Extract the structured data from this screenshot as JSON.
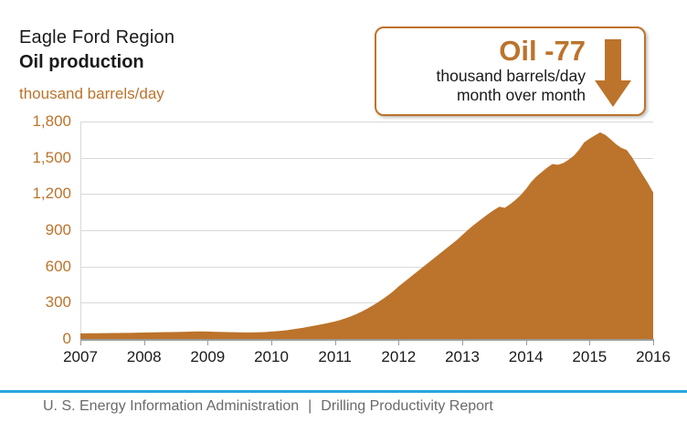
{
  "header": {
    "region": "Eagle Ford Region",
    "metric": "Oil production",
    "units": "thousand barrels/day"
  },
  "callout": {
    "headline": "Oil -77",
    "line1": "thousand barrels/day",
    "line2": "month over month",
    "arrow_icon": "down-arrow-icon",
    "arrow_color": "#bc732b"
  },
  "footer": {
    "org": "U. S. Energy Information Administration",
    "separator": "|",
    "report": "Drilling Productivity Report"
  },
  "colors": {
    "accent_orange": "#bc732b",
    "footer_blue": "#29a8dc",
    "gridline_gray": "#d9d9d9",
    "axis_gray": "#9b9b9b",
    "text_black": "#1a1a1a",
    "footer_gray": "#6a6a6a"
  },
  "chart_data": {
    "type": "area",
    "title": "Eagle Ford Region Oil production",
    "ylabel": "thousand barrels/day",
    "xlabel": "",
    "ylim": [
      0,
      1800
    ],
    "grid": "horizontal",
    "legend_position": "none",
    "fill_color": "#bc732b",
    "x_tick_labels": [
      "2007",
      "2008",
      "2009",
      "2010",
      "2011",
      "2012",
      "2013",
      "2014",
      "2015",
      "2016"
    ],
    "y_tick_labels": [
      "0",
      "300",
      "600",
      "900",
      "1,200",
      "1,500",
      "1,800"
    ],
    "y_tick_values": [
      0,
      300,
      600,
      900,
      1200,
      1500,
      1800
    ],
    "x_start_year": 2007,
    "x_end_year": 2016,
    "points_per_year": 12,
    "annotation": "Oil -77 thousand barrels/day month over month",
    "series": [
      {
        "name": "Eagle Ford oil production (thousand barrels/day, monthly Jan 2007 - Jan 2016)",
        "values": [
          46,
          46,
          47,
          47,
          48,
          48,
          49,
          49,
          50,
          50,
          51,
          52,
          53,
          54,
          55,
          56,
          57,
          57,
          58,
          59,
          60,
          61,
          62,
          62,
          61,
          60,
          59,
          58,
          57,
          56,
          55,
          54,
          54,
          55,
          56,
          58,
          61,
          64,
          68,
          73,
          79,
          86,
          93,
          101,
          109,
          117,
          126,
          135,
          145,
          157,
          171,
          187,
          205,
          226,
          249,
          274,
          301,
          330,
          361,
          395,
          435,
          470,
          505,
          540,
          575,
          610,
          645,
          680,
          715,
          750,
          785,
          820,
          860,
          900,
          938,
          972,
          1005,
          1038,
          1068,
          1095,
          1085,
          1115,
          1150,
          1190,
          1240,
          1300,
          1345,
          1382,
          1418,
          1448,
          1442,
          1455,
          1482,
          1515,
          1565,
          1628,
          1658,
          1685,
          1710,
          1688,
          1652,
          1612,
          1582,
          1565,
          1505,
          1432,
          1360,
          1290,
          1213
        ]
      }
    ]
  }
}
